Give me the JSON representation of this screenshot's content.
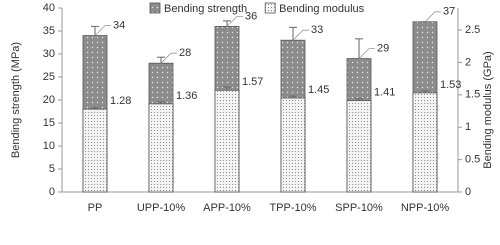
{
  "chart_data": {
    "type": "bar",
    "categories": [
      "PP",
      "UPP-10%",
      "APP-10%",
      "TPP-10%",
      "SPP-10%",
      "NPP-10%"
    ],
    "series": [
      {
        "name": "Bending strength",
        "color": "#8c8c8c",
        "values": [
          34,
          28,
          36,
          33,
          29,
          37
        ],
        "errors": [
          2,
          1.3,
          1.2,
          2.8,
          4.3,
          0
        ]
      },
      {
        "name": "Bending modulus",
        "color": "#f2f2f2",
        "axis": "y2",
        "values": [
          1.28,
          1.36,
          1.57,
          1.45,
          1.41,
          1.53
        ],
        "errors": [
          0.02,
          0.03,
          0.05,
          0.03,
          0.03,
          0.03
        ]
      }
    ],
    "ylabel": "Bending strength (MPa)",
    "y2label": "Bending modulus (GPa)",
    "ylim": [
      0,
      40
    ],
    "yticks": [
      0,
      5,
      10,
      15,
      20,
      25,
      30,
      35,
      40
    ],
    "y2lim": [
      0,
      2.84
    ],
    "y2ticks": [
      0,
      0.5,
      1,
      1.5,
      2,
      2.5
    ],
    "legend": "top"
  }
}
